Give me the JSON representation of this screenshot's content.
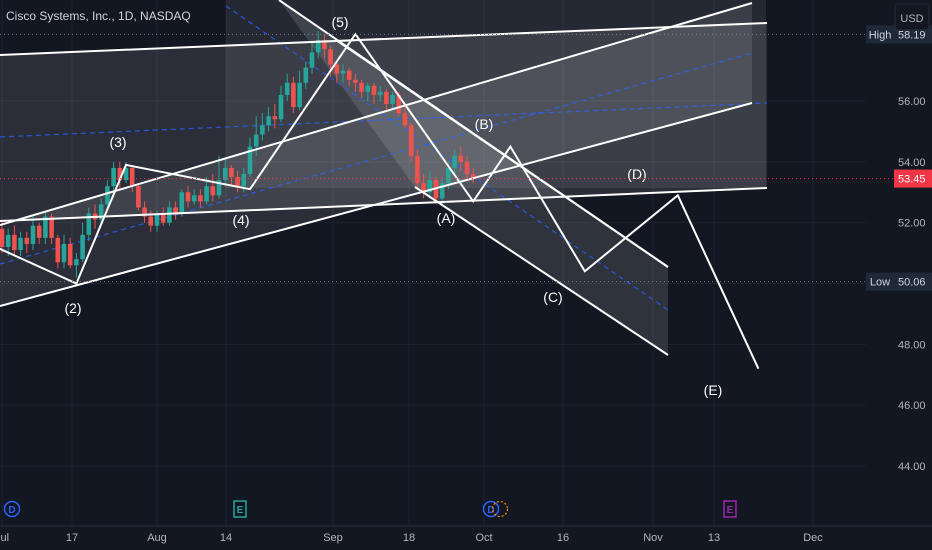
{
  "header": {
    "title": "Cisco Systems, Inc., 1D, NASDAQ",
    "currency": "USD"
  },
  "colors": {
    "background": "#131722",
    "up": "#26a69a",
    "down": "#ef5350",
    "wave_line": "#ffffff",
    "channel_fill": "#ffffff",
    "dash_line": "#2962ff",
    "price_tag": "#f23645",
    "tag_bg": "#1f2937",
    "dividend": "#2962ff",
    "earnings_blue": "#2962ff",
    "split_purple": "#9c27b0"
  },
  "chart_data": {
    "type": "candlestick",
    "title": "Cisco Systems, Inc., 1D, NASDAQ",
    "y_axis": {
      "ticks": [
        44,
        46,
        48,
        50,
        52,
        54,
        56
      ],
      "tick_labels": [
        "44.00",
        "46.00",
        "48.00",
        "50.00",
        "52.00",
        "54.00",
        "56.00"
      ],
      "range": [
        42.6,
        59.6
      ]
    },
    "x_axis": {
      "labels": [
        "Jul",
        "17",
        "Aug",
        "14",
        "Sep",
        "18",
        "Oct",
        "16",
        "Nov",
        "13",
        "Dec"
      ]
    },
    "price_levels": {
      "high": {
        "label": "High",
        "value": 58.19,
        "value_label": "58.19"
      },
      "last": {
        "value": 53.45,
        "value_label": "53.45"
      },
      "low": {
        "label": "Low",
        "value": 50.06,
        "value_label": "50.06"
      }
    },
    "candles": [
      [
        51.8,
        51.2,
        52.1,
        51.0
      ],
      [
        51.2,
        51.6,
        51.8,
        50.9
      ],
      [
        51.6,
        51.1,
        51.9,
        50.9
      ],
      [
        51.1,
        51.5,
        51.7,
        50.9
      ],
      [
        51.5,
        51.3,
        51.7,
        51.0
      ],
      [
        51.3,
        51.9,
        52.2,
        51.1
      ],
      [
        51.9,
        51.5,
        52.0,
        51.3
      ],
      [
        51.5,
        52.2,
        52.4,
        51.3
      ],
      [
        52.2,
        51.5,
        52.3,
        51.3
      ],
      [
        51.5,
        50.7,
        51.6,
        50.5
      ],
      [
        50.7,
        51.3,
        51.6,
        50.5
      ],
      [
        51.3,
        50.6,
        51.5,
        50.5
      ],
      [
        50.6,
        50.8,
        51.0,
        50.2
      ],
      [
        50.8,
        51.6,
        52.0,
        50.7
      ],
      [
        51.6,
        52.3,
        52.5,
        51.4
      ],
      [
        52.3,
        52.1,
        52.6,
        51.8
      ],
      [
        52.1,
        52.6,
        52.8,
        52.0
      ],
      [
        52.6,
        53.2,
        53.4,
        52.4
      ],
      [
        53.2,
        53.8,
        54.0,
        53.0
      ],
      [
        53.8,
        53.4,
        54.0,
        53.1
      ],
      [
        53.4,
        53.8,
        54.0,
        53.3
      ],
      [
        53.8,
        53.2,
        53.9,
        53.0
      ],
      [
        53.2,
        52.5,
        53.3,
        52.4
      ],
      [
        52.5,
        52.2,
        52.7,
        52.0
      ],
      [
        52.2,
        51.9,
        52.4,
        51.7
      ],
      [
        51.9,
        52.3,
        52.4,
        51.7
      ],
      [
        52.3,
        52.0,
        52.5,
        51.9
      ],
      [
        52.0,
        52.5,
        52.7,
        51.9
      ],
      [
        52.5,
        52.3,
        52.7,
        52.1
      ],
      [
        52.3,
        53.0,
        53.1,
        52.2
      ],
      [
        53.0,
        52.7,
        53.2,
        52.5
      ],
      [
        52.7,
        52.9,
        53.1,
        52.6
      ],
      [
        52.9,
        52.7,
        53.1,
        52.5
      ],
      [
        52.7,
        53.2,
        53.5,
        52.6
      ],
      [
        53.2,
        52.9,
        53.6,
        52.7
      ],
      [
        52.9,
        53.4,
        54.2,
        52.8
      ],
      [
        53.4,
        53.8,
        54.1,
        53.2
      ],
      [
        53.8,
        53.5,
        53.9,
        53.2
      ],
      [
        53.5,
        53.2,
        53.7,
        53.0
      ],
      [
        53.2,
        53.6,
        53.8,
        53.0
      ],
      [
        53.6,
        54.5,
        54.8,
        53.5
      ],
      [
        54.5,
        54.9,
        55.5,
        54.2
      ],
      [
        54.9,
        55.2,
        55.6,
        54.7
      ],
      [
        55.2,
        55.5,
        55.8,
        55.0
      ],
      [
        55.5,
        55.4,
        55.9,
        55.1
      ],
      [
        55.4,
        56.2,
        56.5,
        55.3
      ],
      [
        56.2,
        56.6,
        56.9,
        56.0
      ],
      [
        56.6,
        55.8,
        56.8,
        55.6
      ],
      [
        55.8,
        56.6,
        57.0,
        55.7
      ],
      [
        56.6,
        57.1,
        57.3,
        56.4
      ],
      [
        57.1,
        57.6,
        57.9,
        56.9
      ],
      [
        57.6,
        58.0,
        58.3,
        57.4
      ],
      [
        58.0,
        57.7,
        58.2,
        57.4
      ],
      [
        57.7,
        57.2,
        57.8,
        56.8
      ],
      [
        57.2,
        56.9,
        57.3,
        56.6
      ],
      [
        56.9,
        57.0,
        57.2,
        56.6
      ],
      [
        57.0,
        56.7,
        57.1,
        56.5
      ],
      [
        56.7,
        56.6,
        56.9,
        56.3
      ],
      [
        56.6,
        56.3,
        56.7,
        56.1
      ],
      [
        56.3,
        56.5,
        56.6,
        56.0
      ],
      [
        56.5,
        56.2,
        56.6,
        55.9
      ],
      [
        56.2,
        56.3,
        56.5,
        56.0
      ],
      [
        56.3,
        55.9,
        56.4,
        55.7
      ],
      [
        55.9,
        56.2,
        56.3,
        55.7
      ],
      [
        56.2,
        55.6,
        56.3,
        55.5
      ],
      [
        55.6,
        55.2,
        55.8,
        55.1
      ],
      [
        55.2,
        54.2,
        55.3,
        54.0
      ],
      [
        54.2,
        53.3,
        54.4,
        53.1
      ],
      [
        53.3,
        53.0,
        53.6,
        52.8
      ],
      [
        53.0,
        53.4,
        53.7,
        52.8
      ],
      [
        53.4,
        52.8,
        53.5,
        52.6
      ],
      [
        52.8,
        53.3,
        53.5,
        52.6
      ],
      [
        53.3,
        53.8,
        54.0,
        53.1
      ],
      [
        53.8,
        54.2,
        54.4,
        53.6
      ],
      [
        54.2,
        54.0,
        54.5,
        53.7
      ],
      [
        54.0,
        53.6,
        54.2,
        53.4
      ],
      [
        53.6,
        53.45,
        53.8,
        53.3
      ]
    ],
    "waves": [
      {
        "label": "(2)",
        "date_index": 12,
        "value": 50.0
      },
      {
        "label": "(3)",
        "date_index": 20,
        "value": 53.9
      },
      {
        "label": "(4)",
        "date_index": 40,
        "value": 53.1
      },
      {
        "label": "(5)",
        "date_index": 57,
        "value": 58.2
      },
      {
        "label": "(A)",
        "date_index": 76,
        "value": 52.7
      },
      {
        "label": "(B)",
        "date_index": 82,
        "value": 54.5
      },
      {
        "label": "(C)",
        "date_index": 94,
        "value": 50.4
      },
      {
        "label": "(D)",
        "date_index": 109,
        "value": 52.9
      },
      {
        "label": "(E)",
        "date_index": 122,
        "value": 47.2
      }
    ],
    "events": [
      {
        "label": "D",
        "kind": "dividend"
      },
      {
        "label": "E",
        "kind": "earnings"
      },
      {
        "label": "D",
        "kind": "dividend"
      },
      {
        "label": "E",
        "kind": "earnings"
      }
    ]
  }
}
